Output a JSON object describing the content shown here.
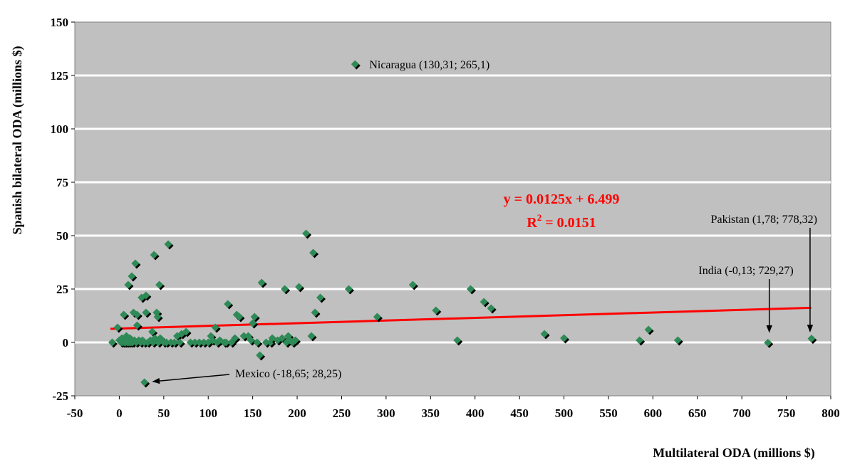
{
  "chart_data": {
    "type": "scatter",
    "xlabel": "Multilateral ODA (millions $)",
    "ylabel": "Spanish bilateral ODA (millions $)",
    "xlim": [
      -50,
      800
    ],
    "ylim": [
      -25,
      150
    ],
    "x_ticks": [
      "-50",
      "0",
      "50",
      "100",
      "150",
      "200",
      "250",
      "300",
      "350",
      "400",
      "450",
      "500",
      "550",
      "600",
      "650",
      "700",
      "750",
      "800"
    ],
    "y_ticks": [
      "-25",
      "0",
      "25",
      "50",
      "75",
      "100",
      "125",
      "150"
    ],
    "grid": "horizontal",
    "background_color": "#c0c0c0",
    "marker_color": "#2e8b57",
    "trendline_color": "#ff0000",
    "trendline": {
      "slope": 0.0125,
      "intercept": 6.499,
      "x_range": [
        -10,
        778
      ],
      "equation": "y = 0.0125x + 6.499",
      "r2_label": "R",
      "r2_sup": "2",
      "r2_value": " = 0.0151"
    },
    "annotations": [
      {
        "label": "Nicaragua (130,31; 265,1)",
        "x": 265.1,
        "y": 130.31
      },
      {
        "label": "Pakistan (1,78; 778,32)",
        "x": 778.32,
        "y": 1.78
      },
      {
        "label": "India (-0,13; 729,27)",
        "x": 729.27,
        "y": -0.13
      },
      {
        "label": "Mexico (-18,65; 28,25)",
        "x": 28.25,
        "y": -18.65
      }
    ],
    "points": [
      [
        -8,
        0
      ],
      [
        -2,
        7
      ],
      [
        0,
        1
      ],
      [
        2,
        0
      ],
      [
        3,
        2
      ],
      [
        4,
        0
      ],
      [
        5,
        1
      ],
      [
        5,
        13
      ],
      [
        6,
        0
      ],
      [
        7,
        0
      ],
      [
        8,
        1
      ],
      [
        8,
        3
      ],
      [
        9,
        0
      ],
      [
        10,
        27
      ],
      [
        10,
        1
      ],
      [
        11,
        0
      ],
      [
        12,
        2
      ],
      [
        13,
        0
      ],
      [
        14,
        31
      ],
      [
        15,
        0
      ],
      [
        16,
        14
      ],
      [
        17,
        1
      ],
      [
        18,
        37
      ],
      [
        19,
        0
      ],
      [
        20,
        8
      ],
      [
        20,
        13
      ],
      [
        22,
        1
      ],
      [
        24,
        0
      ],
      [
        25,
        21
      ],
      [
        26,
        1
      ],
      [
        28,
        0
      ],
      [
        30,
        14
      ],
      [
        30,
        22
      ],
      [
        28.25,
        -18.65
      ],
      [
        32,
        0
      ],
      [
        35,
        1
      ],
      [
        37,
        5
      ],
      [
        38,
        0
      ],
      [
        39,
        41
      ],
      [
        40,
        2
      ],
      [
        42,
        14
      ],
      [
        43,
        12
      ],
      [
        44,
        0
      ],
      [
        45,
        27
      ],
      [
        46,
        2
      ],
      [
        48,
        1
      ],
      [
        50,
        0
      ],
      [
        53,
        0
      ],
      [
        55,
        46
      ],
      [
        58,
        0
      ],
      [
        62,
        0
      ],
      [
        65,
        3
      ],
      [
        68,
        0
      ],
      [
        70,
        4
      ],
      [
        75,
        5
      ],
      [
        80,
        0
      ],
      [
        85,
        0
      ],
      [
        90,
        0
      ],
      [
        95,
        0
      ],
      [
        100,
        0
      ],
      [
        103,
        3
      ],
      [
        105,
        1
      ],
      [
        108,
        7
      ],
      [
        110,
        0
      ],
      [
        113,
        1
      ],
      [
        118,
        0
      ],
      [
        120,
        0
      ],
      [
        122,
        18
      ],
      [
        126,
        0
      ],
      [
        130,
        2
      ],
      [
        132,
        13
      ],
      [
        135,
        12
      ],
      [
        140,
        3
      ],
      [
        145,
        3
      ],
      [
        148,
        1
      ],
      [
        150,
        9
      ],
      [
        152,
        12
      ],
      [
        155,
        0
      ],
      [
        158,
        -6
      ],
      [
        160,
        28
      ],
      [
        165,
        0
      ],
      [
        170,
        0
      ],
      [
        172,
        2
      ],
      [
        178,
        1
      ],
      [
        183,
        2
      ],
      [
        186,
        25
      ],
      [
        188,
        0
      ],
      [
        190,
        3
      ],
      [
        192,
        1
      ],
      [
        195,
        0
      ],
      [
        198,
        1
      ],
      [
        202,
        26
      ],
      [
        210,
        51
      ],
      [
        216,
        3
      ],
      [
        218,
        42
      ],
      [
        220,
        14
      ],
      [
        226,
        21
      ],
      [
        258,
        25
      ],
      [
        265.1,
        130.31
      ],
      [
        290,
        12
      ],
      [
        330,
        27
      ],
      [
        356,
        15
      ],
      [
        380,
        1
      ],
      [
        395,
        25
      ],
      [
        410,
        19
      ],
      [
        418,
        16
      ],
      [
        478,
        4
      ],
      [
        500,
        2
      ],
      [
        585,
        1
      ],
      [
        595,
        6
      ],
      [
        628,
        1
      ],
      [
        729.27,
        -0.13
      ],
      [
        778.32,
        1.78
      ]
    ]
  }
}
